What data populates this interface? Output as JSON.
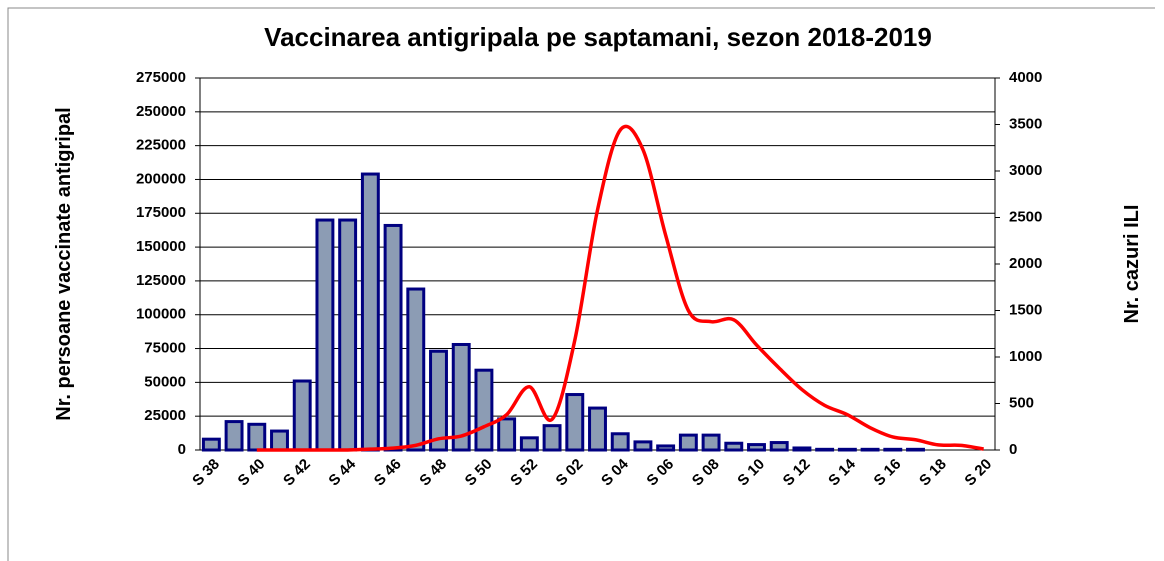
{
  "chart_data": {
    "type": "bar_line",
    "title": "Vaccinarea antigripala pe saptamani, sezon 2018-2019",
    "y_label": "Nr. persoane vaccinate antigripal",
    "y2_label": "Nr. cazuri ILI",
    "categories": [
      "S 38",
      null,
      "S 40",
      null,
      "S 42",
      null,
      "S 44",
      null,
      "S 46",
      null,
      "S 48",
      null,
      "S 50",
      null,
      "S 52",
      null,
      "S 02",
      null,
      "S 04",
      null,
      "S 06",
      null,
      "S 08",
      null,
      "S 10",
      null,
      "S 12",
      null,
      "S 14",
      null,
      "S 16",
      null,
      "S 18",
      null,
      "S 20"
    ],
    "series": [
      {
        "type": "bar",
        "color": "#8c9cb4",
        "edge": "#000080",
        "values": [
          8000,
          21000,
          19000,
          14000,
          51000,
          170000,
          170000,
          204000,
          166000,
          119000,
          73000,
          78000,
          59000,
          23000,
          9000,
          18000,
          41000,
          31000,
          12000,
          6000,
          3000,
          11000,
          11000,
          5000,
          4000,
          5500,
          1500,
          500,
          500,
          500,
          500,
          500,
          null,
          null,
          null
        ]
      },
      {
        "type": "line",
        "axis": "y2",
        "color": "#ff0000",
        "values": [
          null,
          null,
          0,
          0,
          0,
          0,
          0,
          10,
          20,
          50,
          120,
          150,
          250,
          380,
          680,
          330,
          1180,
          2580,
          3440,
          3230,
          2310,
          1500,
          1380,
          1400,
          1130,
          880,
          650,
          480,
          380,
          240,
          140,
          110,
          55,
          50,
          10
        ]
      }
    ],
    "ylim": [
      0,
      275000
    ],
    "yticks": [
      0,
      25000,
      50000,
      75000,
      100000,
      125000,
      150000,
      175000,
      200000,
      225000,
      250000,
      275000
    ],
    "y2lim": [
      0,
      4000
    ],
    "y2ticks": [
      0,
      500,
      1000,
      1500,
      2000,
      2500,
      3000,
      3500,
      4000
    ],
    "grid": true
  }
}
